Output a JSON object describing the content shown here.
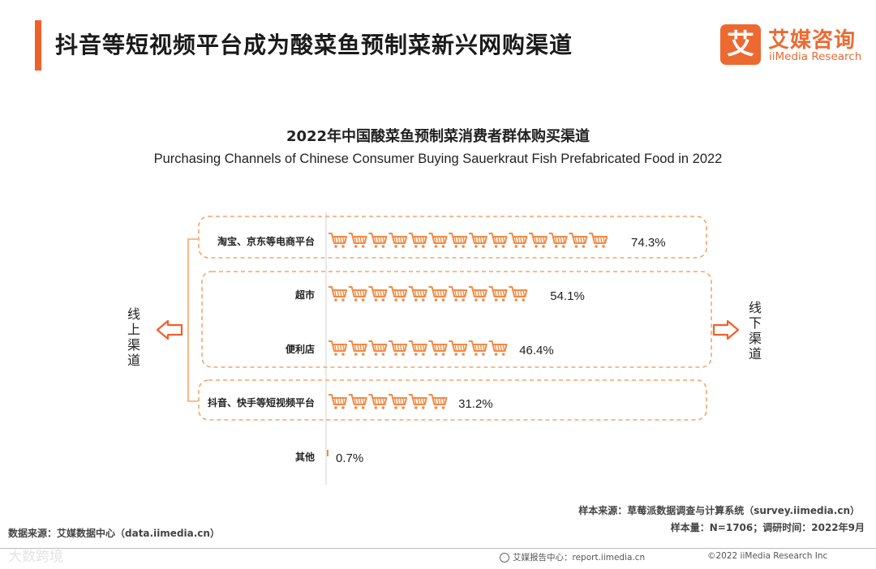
{
  "header": {
    "title": "抖音等短视频平台成为酸菜鱼预制菜新兴网购渠道",
    "logo_mark": "艾",
    "logo_cn": "艾媒咨询",
    "logo_en": "iiMedia Research"
  },
  "colors": {
    "accent": "#f0612a",
    "bar": "#f28a44",
    "dash": "#f2a66d"
  },
  "chart_data": {
    "type": "bar",
    "orientation": "horizontal",
    "title": "2022年中国酸菜鱼预制菜消费者群体购买渠道",
    "subtitle": "Purchasing Channels of Chinese Consumer Buying Sauerkraut Fish Prefabricated Food in 2022",
    "categories": [
      "淘宝、京东等电商平台",
      "超市",
      "便利店",
      "抖音、快手等短视频平台",
      "其他"
    ],
    "values": [
      74.3,
      54.1,
      46.4,
      31.2,
      0.7
    ],
    "labels": [
      "74.3%",
      "54.1%",
      "46.4%",
      "31.2%",
      "0.7%"
    ],
    "unit": "%",
    "mark_icon": "shopping-cart-icon",
    "online_label": "线上渠道",
    "offline_label": "线下渠道"
  },
  "footer": {
    "sample_source": "样本来源：草莓派数据调查与计算系统（survey.iimedia.cn）",
    "sample_size": "样本量：N=1706；调研时间：2022年9月",
    "data_source": "数据来源：艾媒数据中心（data.iimedia.cn）",
    "report_center": "艾媒报告中心：report.iimedia.cn",
    "copyright": "©2022  iiMedia Research  Inc",
    "watermark": "大数跨境"
  }
}
